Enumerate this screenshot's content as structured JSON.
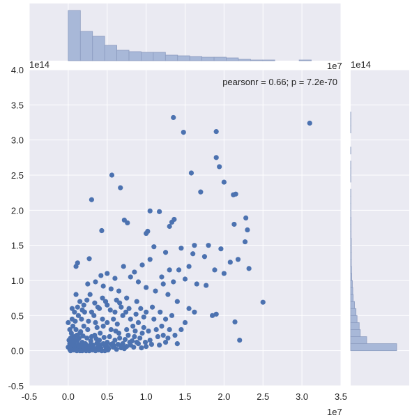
{
  "chart_data": {
    "type": "scatter",
    "annotation": "pearsonr = 0.66; p = 7.2e-70",
    "x_offset_label": "1e7",
    "y_offset_label": "1e14",
    "top_hist_offset_label": "1e7",
    "right_hist_offset_label": "1e14",
    "xlim": [
      -0.5,
      3.5
    ],
    "ylim": [
      -0.5,
      4.0
    ],
    "xticks": [
      "-0.5",
      "0.0",
      "0.5",
      "1.0",
      "1.5",
      "2.0",
      "2.5",
      "3.0",
      "3.5"
    ],
    "yticks": [
      "-0.5",
      "0.0",
      "0.5",
      "1.0",
      "1.5",
      "2.0",
      "2.5",
      "3.0",
      "3.5",
      "4.0"
    ],
    "point_color": "#4c72b0",
    "hist_color": "#a8b8d8",
    "background_color": "#eaeaf2",
    "grid": true,
    "marginal_x_hist": {
      "bin_edges": [
        0,
        0.156,
        0.312,
        0.468,
        0.624,
        0.78,
        0.936,
        1.092,
        1.248,
        1.404,
        1.56,
        1.716,
        1.872,
        2.028,
        2.184,
        2.34,
        2.496,
        2.652,
        2.808,
        2.964,
        3.12
      ],
      "counts": [
        72,
        42,
        35,
        22,
        15,
        13,
        12,
        12,
        8,
        7,
        6,
        5,
        5,
        4,
        2,
        1,
        1,
        0,
        0,
        1
      ]
    },
    "marginal_y_hist": {
      "bin_edges": [
        0,
        0.1,
        0.2,
        0.3,
        0.4,
        0.5,
        0.6,
        0.7,
        0.8,
        0.9,
        1.0,
        1.1,
        1.2,
        1.3,
        1.4,
        1.5,
        1.6,
        1.7,
        1.8,
        1.9,
        2.0,
        2.1,
        2.2,
        2.3,
        2.4,
        2.5,
        2.6,
        2.7,
        2.8,
        2.9,
        3.0,
        3.1,
        3.2,
        3.3,
        3.4
      ],
      "counts": [
        215,
        75,
        45,
        40,
        30,
        25,
        18,
        12,
        10,
        8,
        5,
        4,
        3,
        3,
        3,
        3,
        2,
        2,
        2,
        1,
        1,
        1,
        1,
        0,
        1,
        1,
        1,
        0,
        1,
        0,
        0,
        1,
        1,
        1
      ]
    },
    "points": [
      [
        3.1,
        3.24
      ],
      [
        1.35,
        3.32
      ],
      [
        1.48,
        3.11
      ],
      [
        1.9,
        3.12
      ],
      [
        1.9,
        2.75
      ],
      [
        1.94,
        2.62
      ],
      [
        1.58,
        2.53
      ],
      [
        2.0,
        2.4
      ],
      [
        0.56,
        2.5
      ],
      [
        0.67,
        2.32
      ],
      [
        1.7,
        2.26
      ],
      [
        2.12,
        2.22
      ],
      [
        2.15,
        2.23
      ],
      [
        0.3,
        2.15
      ],
      [
        1.05,
        1.99
      ],
      [
        1.17,
        1.98
      ],
      [
        0.72,
        1.86
      ],
      [
        0.76,
        1.82
      ],
      [
        2.28,
        1.89
      ],
      [
        1.33,
        1.83
      ],
      [
        1.36,
        1.87
      ],
      [
        2.13,
        1.8
      ],
      [
        1.3,
        1.77
      ],
      [
        0.43,
        1.71
      ],
      [
        1.0,
        1.67
      ],
      [
        1.02,
        1.7
      ],
      [
        2.3,
        1.72
      ],
      [
        2.27,
        1.55
      ],
      [
        1.62,
        1.5
      ],
      [
        1.8,
        1.5
      ],
      [
        1.96,
        1.45
      ],
      [
        1.1,
        1.48
      ],
      [
        1.25,
        1.4
      ],
      [
        1.45,
        1.46
      ],
      [
        1.6,
        1.38
      ],
      [
        1.75,
        1.34
      ],
      [
        2.08,
        1.26
      ],
      [
        2.18,
        1.3
      ],
      [
        1.55,
        1.2
      ],
      [
        1.88,
        1.15
      ],
      [
        2.32,
        1.17
      ],
      [
        0.1,
        1.2
      ],
      [
        0.12,
        1.25
      ],
      [
        0.27,
        1.31
      ],
      [
        0.5,
        1.1
      ],
      [
        0.42,
        1.07
      ],
      [
        0.6,
        1.03
      ],
      [
        0.71,
        1.2
      ],
      [
        0.85,
        1.12
      ],
      [
        0.95,
        1.22
      ],
      [
        1.3,
        1.15
      ],
      [
        1.42,
        1.15
      ],
      [
        1.2,
        1.05
      ],
      [
        1.05,
        1.3
      ],
      [
        0.8,
        1.05
      ],
      [
        0.9,
        0.98
      ],
      [
        0.35,
        0.98
      ],
      [
        0.25,
        0.95
      ],
      [
        0.45,
        0.92
      ],
      [
        0.55,
        0.88
      ],
      [
        0.65,
        0.85
      ],
      [
        0.75,
        0.75
      ],
      [
        0.88,
        0.7
      ],
      [
        1.0,
        0.9
      ],
      [
        1.12,
        0.85
      ],
      [
        1.22,
        0.95
      ],
      [
        1.35,
        0.98
      ],
      [
        1.5,
        1.02
      ],
      [
        1.65,
        0.95
      ],
      [
        1.77,
        0.93
      ],
      [
        2.0,
        1.1
      ],
      [
        1.28,
        0.8
      ],
      [
        1.4,
        0.7
      ],
      [
        1.55,
        0.6
      ],
      [
        1.62,
        0.55
      ],
      [
        1.85,
        0.5
      ],
      [
        1.9,
        0.52
      ],
      [
        2.14,
        0.41
      ],
      [
        2.2,
        0.15
      ],
      [
        2.5,
        0.69
      ],
      [
        0.1,
        0.8
      ],
      [
        0.15,
        0.7
      ],
      [
        0.2,
        0.65
      ],
      [
        0.05,
        0.45
      ],
      [
        0.3,
        0.55
      ],
      [
        0.4,
        0.6
      ],
      [
        0.5,
        0.65
      ],
      [
        0.6,
        0.55
      ],
      [
        0.7,
        0.5
      ],
      [
        0.8,
        0.45
      ],
      [
        0.9,
        0.4
      ],
      [
        1.0,
        0.55
      ],
      [
        1.1,
        0.45
      ],
      [
        1.2,
        0.35
      ],
      [
        1.3,
        0.3
      ],
      [
        1.45,
        0.3
      ],
      [
        1.5,
        0.4
      ],
      [
        0.2,
        0.35
      ],
      [
        0.25,
        0.3
      ],
      [
        0.35,
        0.4
      ],
      [
        0.45,
        0.35
      ],
      [
        0.55,
        0.3
      ],
      [
        0.65,
        0.25
      ],
      [
        0.75,
        0.3
      ],
      [
        0.85,
        0.2
      ],
      [
        0.95,
        0.25
      ],
      [
        1.05,
        0.15
      ],
      [
        1.15,
        0.2
      ],
      [
        1.25,
        0.12
      ],
      [
        1.4,
        0.1
      ],
      [
        0.1,
        0.3
      ],
      [
        0.15,
        0.25
      ],
      [
        0.05,
        0.2
      ],
      [
        0.3,
        0.2
      ],
      [
        0.4,
        0.15
      ],
      [
        0.5,
        0.12
      ],
      [
        0.6,
        0.15
      ],
      [
        0.7,
        0.1
      ],
      [
        0.8,
        0.08
      ],
      [
        0.9,
        0.1
      ],
      [
        1.0,
        0.06
      ],
      [
        0.12,
        0.15
      ],
      [
        0.18,
        0.12
      ],
      [
        0.22,
        0.1
      ],
      [
        0.28,
        0.06
      ],
      [
        0.32,
        0.08
      ],
      [
        0.38,
        0.05
      ],
      [
        0.42,
        0.04
      ],
      [
        0.48,
        0.06
      ],
      [
        0.52,
        0.03
      ],
      [
        0.58,
        0.05
      ],
      [
        0.62,
        0.02
      ],
      [
        0.68,
        0.04
      ],
      [
        0.72,
        0.03
      ],
      [
        0.02,
        0.1
      ],
      [
        0.04,
        0.05
      ],
      [
        0.06,
        0.02
      ],
      [
        0.08,
        0.08
      ],
      [
        0.1,
        0.04
      ],
      [
        0.12,
        0.01
      ],
      [
        0.14,
        0.06
      ],
      [
        0.16,
        0.03
      ],
      [
        0.18,
        0.0
      ],
      [
        0.2,
        0.05
      ],
      [
        0.22,
        0.02
      ],
      [
        0.24,
        0.07
      ],
      [
        0.26,
        0.01
      ],
      [
        0.03,
        0.0
      ],
      [
        0.07,
        0.01
      ],
      [
        0.11,
        0.0
      ],
      [
        0.15,
        0.0
      ],
      [
        0.19,
        0.01
      ],
      [
        0.23,
        0.0
      ],
      [
        0.27,
        0.0
      ],
      [
        0.31,
        0.01
      ],
      [
        0.35,
        0.0
      ],
      [
        0.39,
        0.01
      ],
      [
        0.43,
        0.0
      ],
      [
        0.47,
        0.0
      ],
      [
        0.51,
        0.01
      ],
      [
        0.02,
        0.3
      ],
      [
        0.04,
        0.25
      ],
      [
        0.06,
        0.35
      ],
      [
        0.08,
        0.2
      ],
      [
        0.0,
        0.4
      ],
      [
        0.09,
        0.42
      ],
      [
        0.13,
        0.5
      ],
      [
        0.17,
        0.45
      ],
      [
        0.21,
        0.55
      ],
      [
        0.26,
        0.42
      ],
      [
        0.33,
        0.5
      ],
      [
        0.37,
        0.33
      ],
      [
        0.44,
        0.45
      ],
      [
        0.5,
        0.4
      ],
      [
        0.58,
        0.45
      ],
      [
        0.63,
        0.38
      ],
      [
        0.68,
        0.62
      ],
      [
        0.78,
        0.6
      ],
      [
        0.83,
        0.35
      ],
      [
        0.93,
        0.6
      ],
      [
        1.08,
        0.62
      ],
      [
        1.18,
        0.55
      ],
      [
        1.33,
        0.5
      ],
      [
        1.25,
        0.45
      ],
      [
        0.0,
        0.05
      ],
      [
        0.01,
        0.15
      ],
      [
        0.03,
        0.18
      ],
      [
        0.05,
        0.12
      ],
      [
        0.07,
        0.17
      ],
      [
        0.09,
        0.14
      ],
      [
        0.11,
        0.22
      ],
      [
        0.14,
        0.18
      ],
      [
        0.16,
        0.27
      ],
      [
        0.19,
        0.21
      ],
      [
        0.24,
        0.18
      ],
      [
        0.29,
        0.14
      ],
      [
        0.34,
        0.22
      ],
      [
        0.36,
        0.17
      ],
      [
        0.41,
        0.25
      ],
      [
        0.46,
        0.19
      ],
      [
        0.53,
        0.2
      ],
      [
        0.57,
        0.1
      ],
      [
        0.61,
        0.28
      ],
      [
        0.66,
        0.18
      ],
      [
        0.73,
        0.16
      ],
      [
        0.77,
        0.22
      ],
      [
        0.82,
        0.14
      ],
      [
        0.86,
        0.28
      ],
      [
        0.92,
        0.18
      ],
      [
        0.97,
        0.33
      ],
      [
        1.03,
        0.28
      ],
      [
        1.13,
        0.3
      ],
      [
        1.17,
        0.08
      ],
      [
        1.22,
        0.22
      ],
      [
        1.28,
        0.18
      ],
      [
        1.37,
        0.22
      ],
      [
        0.05,
        0.6
      ],
      [
        0.08,
        0.55
      ],
      [
        0.12,
        0.62
      ],
      [
        0.18,
        0.58
      ],
      [
        0.24,
        0.72
      ],
      [
        0.28,
        0.8
      ],
      [
        0.34,
        0.68
      ],
      [
        0.38,
        0.62
      ],
      [
        0.44,
        0.75
      ],
      [
        0.48,
        0.7
      ],
      [
        0.54,
        0.58
      ],
      [
        0.62,
        0.72
      ],
      [
        0.66,
        0.68
      ],
      [
        0.74,
        0.55
      ],
      [
        0.87,
        0.52
      ],
      [
        0.97,
        0.48
      ],
      [
        0.02,
        0.02
      ],
      [
        0.05,
        0.08
      ],
      [
        0.09,
        0.01
      ],
      [
        0.13,
        0.09
      ],
      [
        0.17,
        0.07
      ],
      [
        0.21,
        0.08
      ],
      [
        0.25,
        0.04
      ],
      [
        0.29,
        0.09
      ],
      [
        0.33,
        0.03
      ],
      [
        0.37,
        0.11
      ],
      [
        0.41,
        0.08
      ],
      [
        0.45,
        0.1
      ],
      [
        0.49,
        0.07
      ],
      [
        0.55,
        0.09
      ],
      [
        0.59,
        0.07
      ],
      [
        0.64,
        0.09
      ],
      [
        0.69,
        0.07
      ],
      [
        0.75,
        0.06
      ],
      [
        0.79,
        0.12
      ],
      [
        0.84,
        0.05
      ],
      [
        0.88,
        0.12
      ],
      [
        0.94,
        0.04
      ],
      [
        0.99,
        0.12
      ],
      [
        1.07,
        0.09
      ]
    ]
  }
}
